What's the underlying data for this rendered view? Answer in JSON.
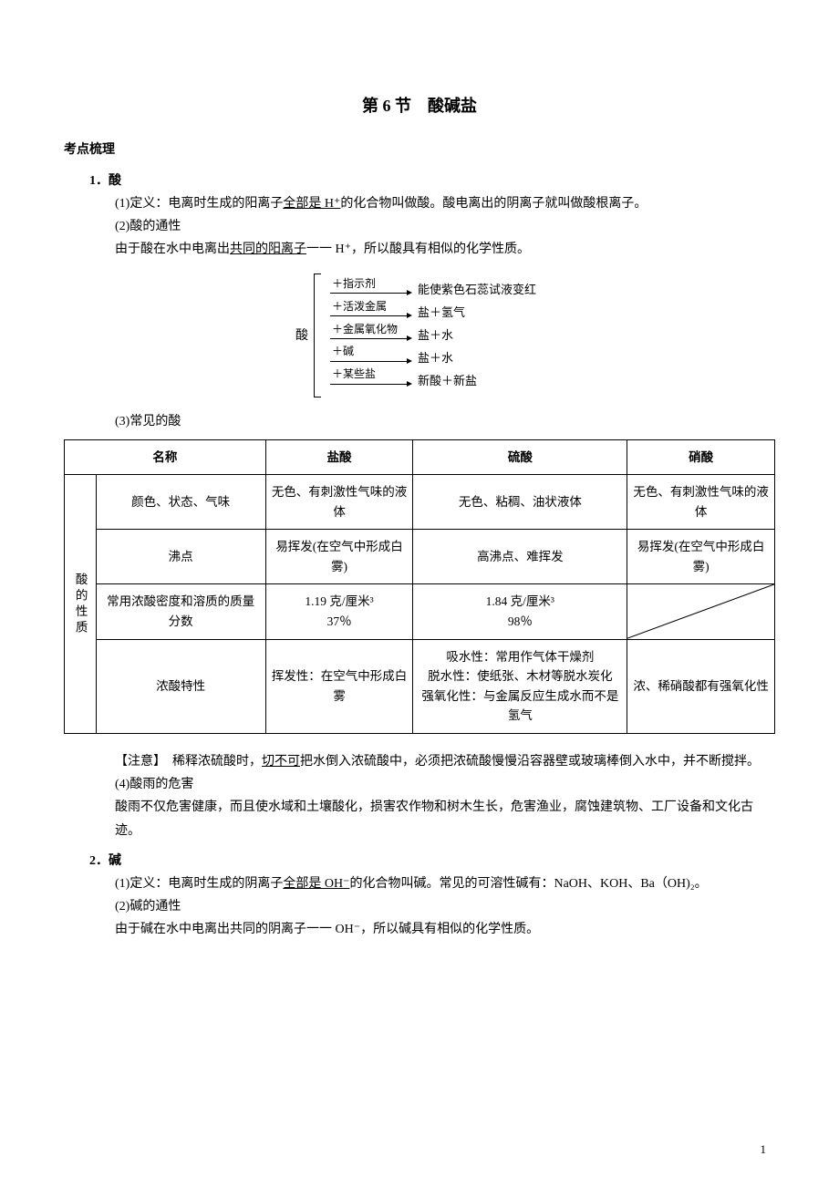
{
  "title": "第 6 节　酸碱盐",
  "outline_header": "考点梳理",
  "s1": {
    "num": "1．酸",
    "def_label": "(1)定义：电离时生成的阳离子",
    "def_underline": "全部是 H⁺",
    "def_rest": "的化合物叫做酸。酸电离出的阴离子就叫做酸根离子。",
    "prop_label": "(2)酸的通性",
    "prop_text_a": "由于酸在水中电离出",
    "prop_underline": "共同的阳离子",
    "prop_text_b": "一一 H⁺，所以酸具有相似的化学性质。"
  },
  "diagram1": {
    "label": "酸",
    "rows": [
      {
        "top": "＋指示剂",
        "result": "能使紫色石蕊试液变红"
      },
      {
        "top": "＋活泼金属",
        "result": "盐＋氢气"
      },
      {
        "top": "＋金属氧化物",
        "result": "盐＋水"
      },
      {
        "top": "＋碱",
        "result": "盐＋水"
      },
      {
        "top": "＋某些盐",
        "result": "新酸＋新盐"
      }
    ]
  },
  "s1c": "(3)常见的酸",
  "table": {
    "h_name": "名称",
    "h_hcl": "盐酸",
    "h_h2so4": "硫酸",
    "h_hno3": "硝酸",
    "vlabel": "酸的性质",
    "r1": {
      "label": "颜色、状态、气味",
      "c1": "无色、有刺激性气味的液体",
      "c2": "无色、粘稠、油状液体",
      "c3": "无色、有刺激性气味的液体"
    },
    "r2": {
      "label": "沸点",
      "c1": "易挥发(在空气中形成白\n雾)",
      "c2": "高沸点、难挥发",
      "c3": "易挥发(在空气中形成白\n雾)"
    },
    "r3": {
      "label": "常用浓酸密度和溶质的质量分数",
      "c1": "1.19 克/厘米³\n37％",
      "c2": "1.84 克/厘米³\n98％"
    },
    "r4": {
      "label": "浓酸特性",
      "c1": "挥发性：在空气中形成白雾",
      "c2": "吸水性：常用作气体干燥剂\n脱水性：使纸张、木材等脱水炭化\n强氧化性：与金属反应生成水而不是氢气",
      "c3": "浓、稀硝酸都有强氧化性"
    }
  },
  "note": {
    "label": "【注意】　稀释浓硫酸时，",
    "underline": "切不可",
    "rest": "把水倒入浓硫酸中，必须把浓硫酸慢慢沿容器壁或玻璃棒倒入水中，并不断搅拌。"
  },
  "s1d": "(4)酸雨的危害",
  "s1d_text": "酸雨不仅危害健康，而且使水域和土壤酸化，损害农作物和树木生长，危害渔业，腐蚀建筑物、工厂设备和文化古迹。",
  "s2": {
    "num": "2．碱",
    "def_label": "(1)定义：电离时生成的阴离子",
    "def_underline": "全部是 OH⁻",
    "def_rest": "的化合物叫碱。常见的可溶性碱有：NaOH、KOH、Ba（OH)₂。",
    "prop_label": "(2)碱的通性",
    "prop_text": "由于碱在水中电离出共同的阴离子一一 OH⁻，所以碱具有相似的化学性质。"
  },
  "page_number": "1"
}
